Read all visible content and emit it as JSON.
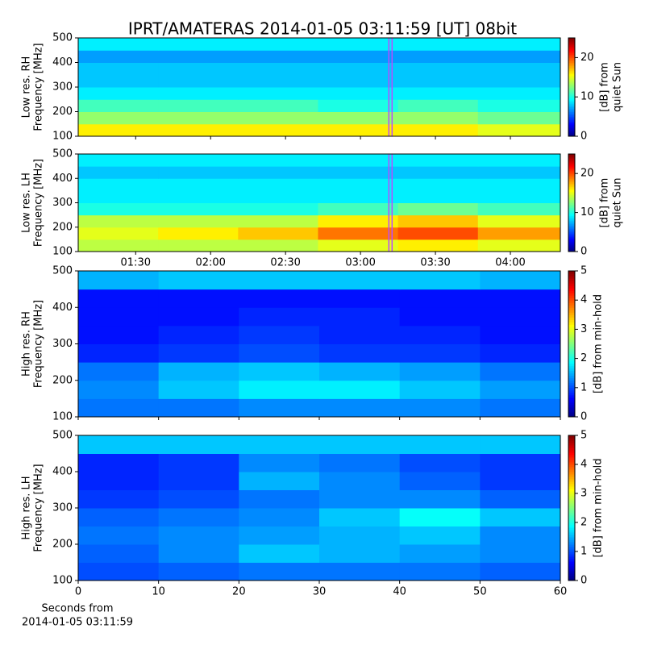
{
  "chart_data": [
    {
      "type": "heatmap",
      "title": "IPRT/AMATERAS 2014-01-05 03:11:59 [UT]   08bit",
      "ylabel": [
        "Low res. RH",
        "Frequency [MHz]"
      ],
      "xlim": [
        67,
        260
      ],
      "ylim": [
        100,
        500
      ],
      "yticks": [
        100,
        200,
        300,
        400,
        500
      ],
      "xbins": [
        67,
        99,
        131,
        163,
        195,
        227,
        260
      ],
      "ybins": [
        100,
        150,
        200,
        250,
        300,
        350,
        400,
        450,
        500
      ],
      "z": [
        [
          16,
          16,
          16,
          16,
          16,
          15
        ],
        [
          13,
          13,
          13,
          13,
          13,
          12
        ],
        [
          11,
          11,
          11,
          10,
          11,
          10
        ],
        [
          9,
          9,
          9,
          9,
          9,
          9
        ],
        [
          8,
          8,
          8,
          8,
          8,
          8
        ],
        [
          8,
          8,
          8,
          8,
          8,
          8
        ],
        [
          7,
          7,
          7,
          7,
          7,
          7
        ],
        [
          9,
          9,
          9,
          9,
          9,
          9
        ]
      ],
      "clim": [
        0,
        25
      ],
      "cticks": [
        0,
        10,
        20
      ],
      "clabel": [
        "[dB] from",
        "quiet Sun"
      ],
      "marker_x": 192,
      "marker_color": "#b84cff"
    },
    {
      "type": "heatmap",
      "ylabel": [
        "Low res. LH",
        "Frequency [MHz]"
      ],
      "xlim": [
        67,
        260
      ],
      "ylim": [
        100,
        500
      ],
      "yticks": [
        100,
        200,
        300,
        400,
        500
      ],
      "xticks": [
        {
          "value": 90,
          "label": "01:30"
        },
        {
          "value": 120,
          "label": "02:00"
        },
        {
          "value": 150,
          "label": "02:30"
        },
        {
          "value": 180,
          "label": "03:00"
        },
        {
          "value": 210,
          "label": "03:30"
        },
        {
          "value": 240,
          "label": "04:00"
        }
      ],
      "xbins": [
        67,
        99,
        131,
        163,
        195,
        227,
        260
      ],
      "ybins": [
        100,
        150,
        200,
        250,
        300,
        350,
        400,
        450,
        500
      ],
      "z": [
        [
          14,
          14,
          14,
          15,
          16,
          15
        ],
        [
          15,
          16,
          17,
          19,
          20,
          18
        ],
        [
          14,
          14,
          14,
          16,
          17,
          15
        ],
        [
          10,
          10,
          10,
          11,
          12,
          11
        ],
        [
          9,
          9,
          9,
          9,
          9,
          9
        ],
        [
          9,
          9,
          9,
          9,
          9,
          9
        ],
        [
          8,
          8,
          8,
          8,
          8,
          8
        ],
        [
          9,
          9,
          9,
          9,
          9,
          9
        ]
      ],
      "clim": [
        0,
        25
      ],
      "cticks": [
        0,
        10,
        20
      ],
      "clabel": [
        "[dB] from",
        "quiet Sun"
      ],
      "marker_x": 192,
      "marker_color": "#b84cff"
    },
    {
      "type": "heatmap",
      "ylabel": [
        "High res. RH",
        "Frequency [MHz]"
      ],
      "xlim": [
        0,
        60
      ],
      "ylim": [
        100,
        500
      ],
      "yticks": [
        100,
        200,
        300,
        400,
        500
      ],
      "xbins": [
        0,
        10,
        20,
        30,
        40,
        50,
        60
      ],
      "ybins": [
        100,
        150,
        200,
        250,
        300,
        350,
        400,
        450,
        500
      ],
      "z": [
        [
          1.2,
          1.2,
          1.3,
          1.3,
          1.3,
          1.2
        ],
        [
          1.3,
          1.6,
          1.8,
          1.8,
          1.6,
          1.4
        ],
        [
          1.2,
          1.5,
          1.6,
          1.5,
          1.4,
          1.2
        ],
        [
          0.8,
          0.9,
          1.0,
          0.9,
          0.9,
          0.8
        ],
        [
          0.7,
          0.8,
          0.9,
          0.8,
          0.8,
          0.7
        ],
        [
          0.7,
          0.7,
          0.8,
          0.8,
          0.7,
          0.7
        ],
        [
          0.7,
          0.7,
          0.7,
          0.7,
          0.7,
          0.7
        ],
        [
          1.5,
          1.6,
          1.6,
          1.6,
          1.6,
          1.5
        ]
      ],
      "clim": [
        0,
        5
      ],
      "cticks": [
        0,
        1,
        2,
        3,
        4,
        5
      ],
      "clabel": [
        "[dB] from min-hold"
      ]
    },
    {
      "type": "heatmap",
      "ylabel": [
        "High res. LH",
        "Frequency [MHz]"
      ],
      "xlabel": [
        "Seconds from",
        "2014-01-05 03:11:59"
      ],
      "xlim": [
        0,
        60
      ],
      "ylim": [
        100,
        500
      ],
      "yticks": [
        100,
        200,
        300,
        400,
        500
      ],
      "xticks": [
        0,
        10,
        20,
        30,
        40,
        50,
        60
      ],
      "xbins": [
        0,
        10,
        20,
        30,
        40,
        50,
        60
      ],
      "ybins": [
        100,
        150,
        200,
        250,
        300,
        350,
        400,
        450,
        500
      ],
      "z": [
        [
          1.0,
          1.1,
          1.2,
          1.2,
          1.2,
          1.1
        ],
        [
          1.1,
          1.3,
          1.6,
          1.5,
          1.4,
          1.3
        ],
        [
          1.2,
          1.3,
          1.4,
          1.5,
          1.6,
          1.3
        ],
        [
          1.1,
          1.2,
          1.3,
          1.6,
          1.9,
          1.6
        ],
        [
          0.9,
          1.0,
          1.2,
          1.3,
          1.3,
          1.1
        ],
        [
          0.8,
          0.9,
          1.5,
          1.3,
          1.1,
          0.9
        ],
        [
          0.8,
          0.9,
          1.3,
          1.2,
          1.0,
          0.9
        ],
        [
          1.6,
          1.6,
          1.6,
          1.6,
          1.6,
          1.6
        ]
      ],
      "clim": [
        0,
        5
      ],
      "cticks": [
        0,
        1,
        2,
        3,
        4,
        5
      ],
      "clabel": [
        "[dB] from min-hold"
      ]
    }
  ]
}
